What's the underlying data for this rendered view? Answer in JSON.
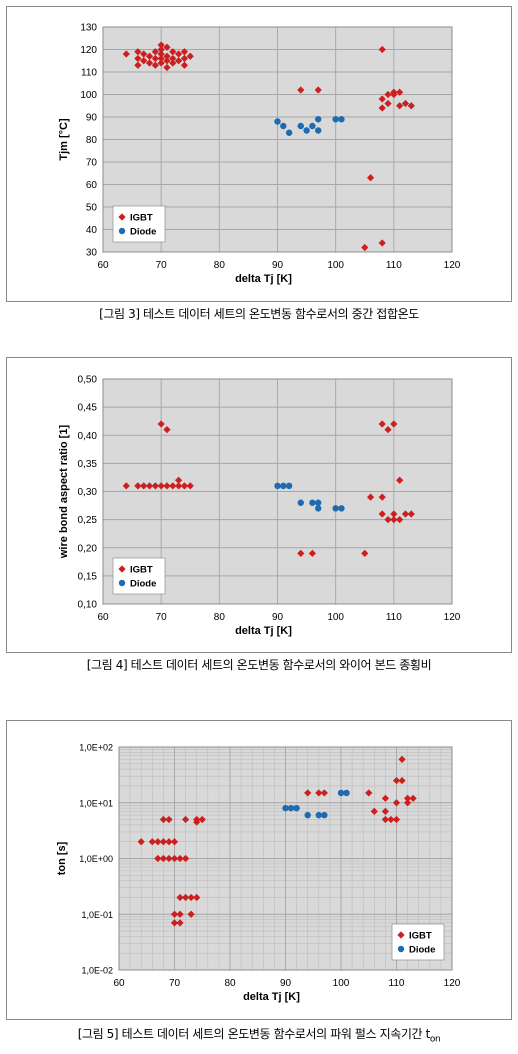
{
  "colors": {
    "igbt": "#cc1f1f",
    "diode": "#1e6bb0",
    "plot_bg": "#d9d9d9",
    "grid": "#a6a6a6"
  },
  "chart_data": [
    {
      "type": "scatter",
      "caption": "[그림 3] 테스트 데이터 세트의 온도변동 함수로서의 중간 접합온도",
      "xlabel": "delta Tj [K]",
      "ylabel": "Tjm [°C]",
      "xlim": [
        60,
        120
      ],
      "ylim": [
        30,
        130
      ],
      "xticks": [
        "60",
        "70",
        "80",
        "90",
        "100",
        "110",
        "120"
      ],
      "yticks": [
        "30",
        "40",
        "50",
        "60",
        "70",
        "80",
        "90",
        "100",
        "110",
        "120",
        "130"
      ],
      "legend": [
        "IGBT",
        "Diode"
      ],
      "legend_position": "bottom-left",
      "grid": true,
      "series": [
        {
          "name": "IGBT",
          "marker": "diamond",
          "points": [
            [
              64,
              118
            ],
            [
              66,
              119
            ],
            [
              66,
              116
            ],
            [
              66,
              113
            ],
            [
              67,
              118
            ],
            [
              67,
              115
            ],
            [
              68,
              117
            ],
            [
              68,
              114
            ],
            [
              69,
              119
            ],
            [
              69,
              116
            ],
            [
              69,
              113
            ],
            [
              70,
              122
            ],
            [
              70,
              120
            ],
            [
              70,
              118
            ],
            [
              70,
              116
            ],
            [
              70,
              114
            ],
            [
              71,
              121
            ],
            [
              71,
              117
            ],
            [
              71,
              115
            ],
            [
              71,
              112
            ],
            [
              72,
              119
            ],
            [
              72,
              116
            ],
            [
              72,
              114
            ],
            [
              73,
              118
            ],
            [
              73,
              115
            ],
            [
              74,
              119
            ],
            [
              74,
              116
            ],
            [
              74,
              113
            ],
            [
              75,
              117
            ],
            [
              94,
              102
            ],
            [
              97,
              102
            ],
            [
              108,
              120
            ],
            [
              108,
              98
            ],
            [
              108,
              94
            ],
            [
              109,
              100
            ],
            [
              109,
              96
            ],
            [
              110,
              101
            ],
            [
              110,
              100
            ],
            [
              111,
              101
            ],
            [
              111,
              95
            ],
            [
              112,
              96
            ],
            [
              113,
              95
            ],
            [
              106,
              63
            ],
            [
              105,
              32
            ],
            [
              108,
              34
            ]
          ]
        },
        {
          "name": "Diode",
          "marker": "circle",
          "points": [
            [
              90,
              88
            ],
            [
              91,
              86
            ],
            [
              92,
              83
            ],
            [
              94,
              86
            ],
            [
              95,
              84
            ],
            [
              96,
              86
            ],
            [
              97,
              89
            ],
            [
              97,
              84
            ],
            [
              100,
              89
            ],
            [
              101,
              89
            ]
          ]
        }
      ]
    },
    {
      "type": "scatter",
      "caption": "[그림 4] 테스트 데이터 세트의 온도변동 함수로서의 와이어 본드 종횡비",
      "xlabel": "delta Tj [K]",
      "ylabel": "wire bond aspect ratio [1]",
      "xlim": [
        60,
        120
      ],
      "ylim": [
        0.1,
        0.5
      ],
      "xticks": [
        "60",
        "70",
        "80",
        "90",
        "100",
        "110",
        "120"
      ],
      "yticks": [
        "0,10",
        "0,15",
        "0,20",
        "0,25",
        "0,30",
        "0,35",
        "0,40",
        "0,45",
        "0,50"
      ],
      "legend": [
        "IGBT",
        "Diode"
      ],
      "legend_position": "bottom-left",
      "grid": true,
      "series": [
        {
          "name": "IGBT",
          "marker": "diamond",
          "points": [
            [
              64,
              0.31
            ],
            [
              66,
              0.31
            ],
            [
              67,
              0.31
            ],
            [
              68,
              0.31
            ],
            [
              69,
              0.31
            ],
            [
              70,
              0.31
            ],
            [
              71,
              0.31
            ],
            [
              72,
              0.31
            ],
            [
              73,
              0.31
            ],
            [
              74,
              0.31
            ],
            [
              75,
              0.31
            ],
            [
              73,
              0.32
            ],
            [
              70,
              0.42
            ],
            [
              71,
              0.41
            ],
            [
              94,
              0.19
            ],
            [
              96,
              0.19
            ],
            [
              105,
              0.19
            ],
            [
              106,
              0.29
            ],
            [
              108,
              0.29
            ],
            [
              108,
              0.42
            ],
            [
              109,
              0.41
            ],
            [
              110,
              0.42
            ],
            [
              108,
              0.26
            ],
            [
              109,
              0.25
            ],
            [
              110,
              0.26
            ],
            [
              110,
              0.25
            ],
            [
              111,
              0.25
            ],
            [
              111,
              0.32
            ],
            [
              112,
              0.26
            ],
            [
              113,
              0.26
            ]
          ]
        },
        {
          "name": "Diode",
          "marker": "circle",
          "points": [
            [
              90,
              0.31
            ],
            [
              91,
              0.31
            ],
            [
              92,
              0.31
            ],
            [
              94,
              0.28
            ],
            [
              96,
              0.28
            ],
            [
              97,
              0.28
            ],
            [
              97,
              0.27
            ],
            [
              100,
              0.27
            ],
            [
              101,
              0.27
            ]
          ]
        }
      ]
    },
    {
      "type": "scatter",
      "caption": "[그림 5] 테스트 데이터 세트의 온도변동 함수로서의 파워 펄스 지속기간 t",
      "caption_sub": "on",
      "xlabel": "delta Tj [K]",
      "ylabel": "ton [s]",
      "xlim": [
        60,
        120
      ],
      "ylim": [
        0.01,
        100
      ],
      "log_y": true,
      "xticks": [
        "60",
        "70",
        "80",
        "90",
        "100",
        "110",
        "120"
      ],
      "yticks": [
        "1,0E-02",
        "1,0E-01",
        "1,0E+00",
        "1,0E+01",
        "1,0E+02"
      ],
      "legend": [
        "IGBT",
        "Diode"
      ],
      "legend_position": "bottom-right",
      "grid": true,
      "series": [
        {
          "name": "IGBT",
          "marker": "diamond",
          "points": [
            [
              64,
              2
            ],
            [
              66,
              2
            ],
            [
              67,
              2
            ],
            [
              68,
              2
            ],
            [
              69,
              2
            ],
            [
              70,
              2
            ],
            [
              67,
              1
            ],
            [
              68,
              1
            ],
            [
              69,
              1
            ],
            [
              70,
              1
            ],
            [
              71,
              1
            ],
            [
              72,
              1
            ],
            [
              68,
              5
            ],
            [
              69,
              5
            ],
            [
              72,
              5
            ],
            [
              74,
              5
            ],
            [
              75,
              5
            ],
            [
              74,
              4.5
            ],
            [
              71,
              0.2
            ],
            [
              72,
              0.2
            ],
            [
              73,
              0.2
            ],
            [
              74,
              0.2
            ],
            [
              70,
              0.1
            ],
            [
              71,
              0.1
            ],
            [
              73,
              0.1
            ],
            [
              70,
              0.07
            ],
            [
              71,
              0.07
            ],
            [
              94,
              15
            ],
            [
              96,
              15
            ],
            [
              97,
              15
            ],
            [
              105,
              15
            ],
            [
              106,
              7
            ],
            [
              108,
              5
            ],
            [
              108,
              7
            ],
            [
              108,
              12
            ],
            [
              109,
              5
            ],
            [
              110,
              5
            ],
            [
              110,
              10
            ],
            [
              110,
              25
            ],
            [
              111,
              25
            ],
            [
              111,
              60
            ],
            [
              112,
              10
            ],
            [
              112,
              12
            ],
            [
              113,
              12
            ]
          ]
        },
        {
          "name": "Diode",
          "marker": "circle",
          "points": [
            [
              90,
              8
            ],
            [
              91,
              8
            ],
            [
              92,
              8
            ],
            [
              94,
              6
            ],
            [
              96,
              6
            ],
            [
              97,
              6
            ],
            [
              100,
              15
            ],
            [
              101,
              15
            ]
          ]
        }
      ]
    }
  ]
}
